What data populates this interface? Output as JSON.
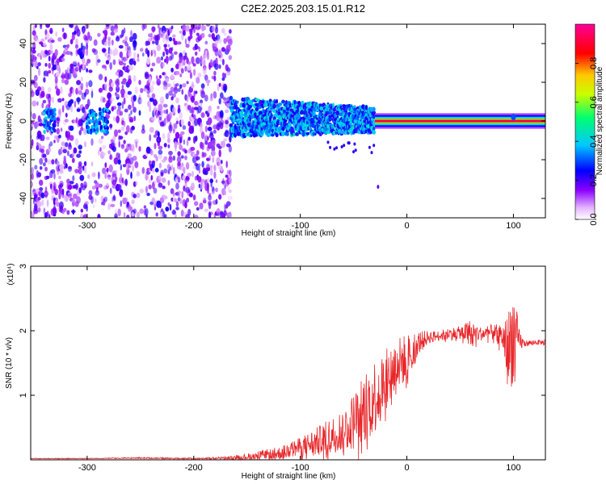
{
  "title": "C2E2.2025.203.15.01.R12",
  "colors": {
    "snr_line": "#e8262a",
    "frame": "#000000",
    "background": "#ffffff"
  },
  "chart_data": [
    {
      "type": "heatmap",
      "id": "spectrogram",
      "xlabel": "Height of straight line (km)",
      "ylabel": "Frequency (Hz)",
      "xlim": [
        -353,
        130
      ],
      "ylim": [
        -50,
        50
      ],
      "xticks": [
        -300,
        -200,
        -100,
        0,
        100
      ],
      "xtick_labels": [
        "-300",
        "-200",
        "-100",
        "0",
        "100"
      ],
      "yticks": [
        -40,
        -20,
        0,
        20,
        40
      ],
      "ytick_labels": [
        "-40",
        "-20",
        "0",
        "20",
        "40"
      ],
      "colorbar": {
        "label": "Normalized spectral amplitude",
        "range": [
          0,
          1
        ],
        "ticks": [
          0.0,
          0.2,
          0.4,
          0.6,
          0.8
        ],
        "tick_labels": [
          "0.0",
          "0.2",
          "0.4",
          "0.6",
          "0.8"
        ],
        "colormap": "rainbow (violet-blue-cyan-green-yellow-red-magenta)"
      },
      "regions": [
        {
          "x_range": [
            -353,
            -165
          ],
          "freq_range": [
            -50,
            50
          ],
          "amplitude": "0.05-0.25",
          "note": "broadband noise, sparse"
        },
        {
          "x_range": [
            -165,
            -30
          ],
          "freq_range": [
            -8,
            12
          ],
          "amplitude": "0.2-0.45",
          "note": "narrowing band"
        },
        {
          "x_range": [
            -30,
            130
          ],
          "freq_range": [
            -1.5,
            1.5
          ],
          "amplitude": "0.9-1.0",
          "note": "narrow tone at 0 Hz"
        }
      ],
      "grid": false
    },
    {
      "type": "line",
      "id": "snr",
      "xlabel": "Height of straight line (km)",
      "ylabel": "SNR (10 * v/v)",
      "scale_label": "(x10⁴)",
      "xlim": [
        -353,
        130
      ],
      "ylim": [
        0,
        3
      ],
      "xticks": [
        -300,
        -200,
        -100,
        0,
        100
      ],
      "xtick_labels": [
        "-300",
        "-200",
        "-100",
        "0",
        "100"
      ],
      "yticks": [
        1,
        2,
        3
      ],
      "ytick_labels": [
        "1",
        "2",
        "3"
      ],
      "series": [
        {
          "x": [
            -353,
            -300,
            -250,
            -200,
            -170,
            -150,
            -120,
            -100,
            -80,
            -60,
            -50,
            -40,
            -30,
            -20,
            -10,
            0,
            10,
            20,
            30,
            40,
            50,
            60,
            70,
            80,
            90,
            95,
            100,
            105,
            110,
            120,
            130
          ],
          "y": [
            0.02,
            0.02,
            0.03,
            0.02,
            0.03,
            0.05,
            0.1,
            0.2,
            0.3,
            0.45,
            0.6,
            0.8,
            1.0,
            1.2,
            1.45,
            1.6,
            1.8,
            1.9,
            1.92,
            1.95,
            1.97,
            1.98,
            1.95,
            1.98,
            1.9,
            1.7,
            1.95,
            1.85,
            1.8,
            1.82,
            1.82
          ],
          "noise": [
            0.005,
            0.005,
            0.01,
            0.01,
            0.02,
            0.05,
            0.1,
            0.15,
            0.25,
            0.35,
            0.45,
            0.55,
            0.6,
            0.5,
            0.45,
            0.35,
            0.2,
            0.1,
            0.08,
            0.1,
            0.1,
            0.2,
            0.1,
            0.12,
            0.2,
            0.6,
            0.8,
            0.2,
            0.05,
            0.04,
            0.04
          ]
        }
      ],
      "grid": false
    }
  ]
}
